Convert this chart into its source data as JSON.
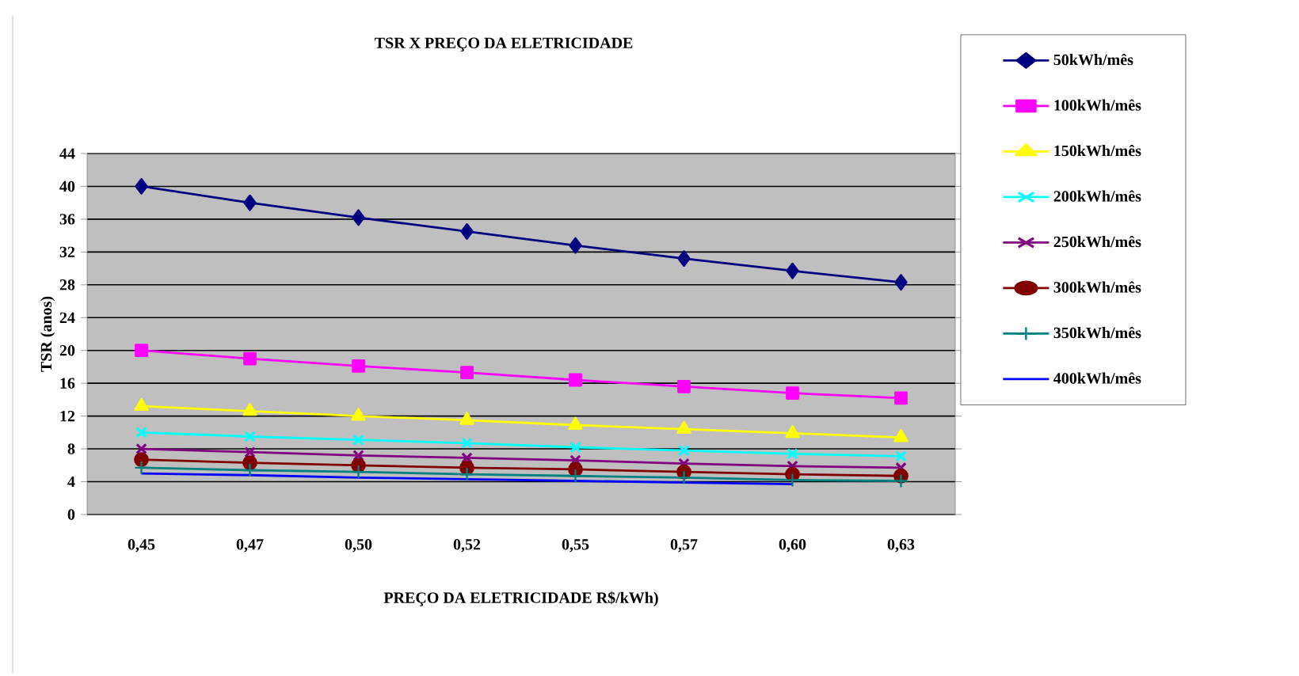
{
  "chart_data": {
    "type": "line",
    "title": "TSR X PREÇO DA ELETRICIDADE",
    "xlabel": "PREÇO DA ELETRICIDADE R$/kWh)",
    "ylabel": "TSR (anos)",
    "categories": [
      "0,45",
      "0,47",
      "0,50",
      "0,52",
      "0,55",
      "0,57",
      "0,60",
      "0,63"
    ],
    "ylim": [
      0,
      44
    ],
    "yticks": [
      0,
      4,
      8,
      12,
      16,
      20,
      24,
      28,
      32,
      36,
      40,
      44
    ],
    "grid": "y",
    "legend": "right",
    "series": [
      {
        "name": "50kWh/mês",
        "color": "#000080",
        "marker": "diamond",
        "values": [
          40,
          38,
          36.2,
          34.5,
          32.8,
          31.2,
          29.7,
          28.3
        ]
      },
      {
        "name": "100kWh/mês",
        "color": "#ff00ff",
        "marker": "square",
        "values": [
          20,
          19,
          18.1,
          17.3,
          16.4,
          15.6,
          14.8,
          14.2
        ]
      },
      {
        "name": "150kWh/mês",
        "color": "#ffff00",
        "marker": "triangle",
        "values": [
          13.2,
          12.6,
          12,
          11.5,
          10.9,
          10.4,
          9.9,
          9.4
        ]
      },
      {
        "name": "200kWh/mês",
        "color": "#00ffff",
        "marker": "cross",
        "values": [
          10,
          9.5,
          9.1,
          8.7,
          8.2,
          7.8,
          7.4,
          7.1
        ]
      },
      {
        "name": "250kWh/mês",
        "color": "#800080",
        "marker": "cross",
        "values": [
          8,
          7.6,
          7.2,
          6.9,
          6.6,
          6.2,
          5.9,
          5.7
        ]
      },
      {
        "name": "300kWh/mês",
        "color": "#800000",
        "marker": "circle",
        "values": [
          6.7,
          6.3,
          6.0,
          5.7,
          5.5,
          5.2,
          4.9,
          4.7
        ]
      },
      {
        "name": "350kWh/mês",
        "color": "#008080",
        "marker": "plus",
        "values": [
          5.7,
          5.4,
          5.2,
          4.9,
          4.7,
          4.5,
          4.2,
          4.1
        ]
      },
      {
        "name": "400kWh/mês",
        "color": "#0000ff",
        "marker": "none",
        "values": [
          5.0,
          4.8,
          4.5,
          4.3,
          4.1,
          3.9,
          3.7,
          null
        ]
      }
    ]
  }
}
